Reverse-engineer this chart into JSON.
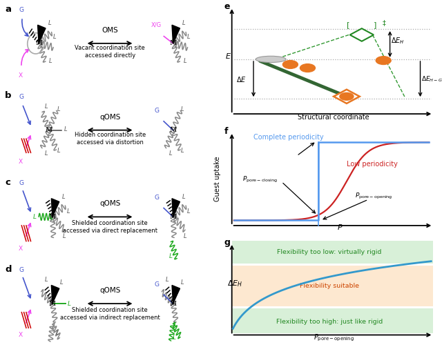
{
  "bg_color": "#ffffff",
  "color_blue": "#4455cc",
  "color_pink": "#ee44ee",
  "color_red": "#cc0000",
  "color_green": "#22aa22",
  "color_orange": "#e87722",
  "color_gray": "#888888",
  "color_cyan": "#3399cc",
  "color_lightblue": "#5599ee",
  "color_darkred": "#cc2222",
  "panel_e_xlabel": "Structural coordinate",
  "panel_f_xlabel": "P",
  "panel_f_ylabel": "Guest uptake",
  "panel_g_xlabel": "$P_{\\mathrm{pore\\text{-}opening}}$",
  "panel_g_ylabel": "$\\Delta E_H$",
  "desc_a": "Vacant coordination site\naccessed directly",
  "desc_b": "Hidden coordination site\naccessed via distortion",
  "desc_c": "Shielded coordination site\naccessed via direct replacement",
  "desc_d": "Shielded coordination site\naccessed via indirect replacement",
  "label_oms": "OMS",
  "label_qoms": "qOMS",
  "complete_periodicity": "Complete periodicity",
  "low_periodicity": "Low periodicity",
  "flex_too_low": "Flexibility too low: virtually rigid",
  "flex_suitable": "Flexibility suitable",
  "flex_too_high": "Flexibility too high: just like rigid"
}
